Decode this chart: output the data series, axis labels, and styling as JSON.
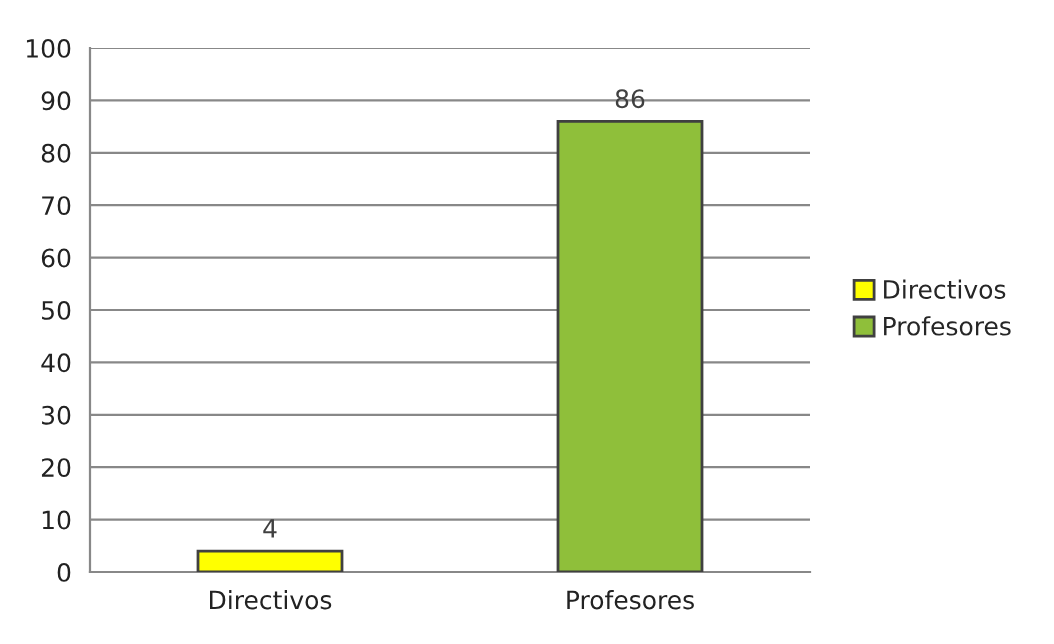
{
  "chart_data": {
    "type": "bar",
    "categories": [
      "Directivos",
      "Profesores"
    ],
    "series": [
      {
        "name": "Directivos",
        "color": "#ffff00",
        "values": [
          4,
          null
        ]
      },
      {
        "name": "Profesores",
        "color": "#8fbf3a",
        "values": [
          null,
          86
        ]
      }
    ],
    "ylim": [
      0,
      100
    ],
    "yticks": [
      0,
      10,
      20,
      30,
      40,
      50,
      60,
      70,
      80,
      90,
      100
    ],
    "grid": "y",
    "legend": "right",
    "data_labels": true
  }
}
